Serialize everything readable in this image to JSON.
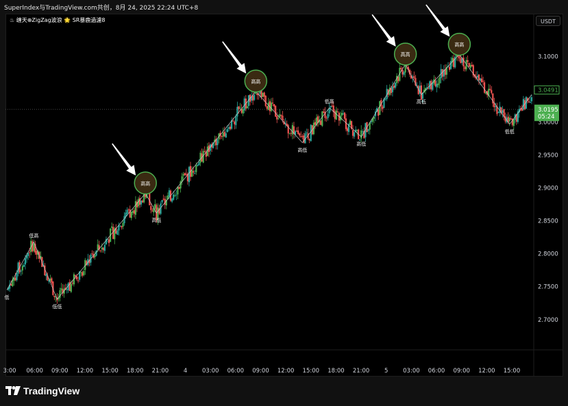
{
  "window": {
    "title": "SuperIndex与TradingView.com共创，8月 24, 2025 22:24 UTC+8"
  },
  "indicator": {
    "label": "♨ 缠天⊕ZigZag波浪 🌟 SR暴鹿過濾8"
  },
  "toolbar": {
    "currency": "USDT"
  },
  "branding": {
    "logo_text": "TradingView"
  },
  "chart_data": {
    "type": "line",
    "title": "",
    "xlabel": "",
    "ylabel": "",
    "ylim": [
      2.655,
      3.165
    ],
    "x_ticks": [
      "3:00",
      "06:00",
      "09:00",
      "12:00",
      "15:00",
      "18:00",
      "21:00",
      "4",
      "03:00",
      "06:00",
      "09:00",
      "12:00",
      "15:00",
      "18:00",
      "21:00",
      "5",
      "03:00",
      "06:00",
      "09:00",
      "12:00",
      "15:00"
    ],
    "y_ticks": [
      "3.1000",
      "3.0500",
      "3.0000",
      "2.9500",
      "2.9000",
      "2.8500",
      "2.8000",
      "2.7500",
      "2.7000"
    ],
    "y_tick_values": [
      3.1,
      3.05,
      3.0,
      2.95,
      2.9,
      2.85,
      2.8,
      2.75,
      2.7
    ],
    "current_price": "3.0195",
    "countdown": "05:24",
    "marked_price": "3.0491",
    "colors": {
      "up": "#26a69a",
      "up_bright": "#4caf50",
      "down": "#ef5350",
      "zigzag": "#c8c8c8",
      "circle_stroke": "#4caf50",
      "circle_fill": "#3a2a12",
      "price_label": "#4caf50"
    },
    "zigzag": [
      {
        "x": 0.0,
        "y": 2.745
      },
      {
        "x": 2.2,
        "y": 2.818
      },
      {
        "x": 4.1,
        "y": 2.731
      },
      {
        "x": 11.3,
        "y": 2.892
      },
      {
        "x": 12.2,
        "y": 2.862
      },
      {
        "x": 20.3,
        "y": 3.047
      },
      {
        "x": 24.1,
        "y": 2.969
      },
      {
        "x": 26.3,
        "y": 3.022
      },
      {
        "x": 28.9,
        "y": 2.978
      },
      {
        "x": 32.5,
        "y": 3.088
      },
      {
        "x": 33.8,
        "y": 3.042
      },
      {
        "x": 36.9,
        "y": 3.103
      },
      {
        "x": 41.0,
        "y": 2.997
      },
      {
        "x": 42.8,
        "y": 3.042
      }
    ],
    "zigzag_labels": [
      {
        "x": 0.0,
        "y": 2.745,
        "text": "低",
        "pos": "below"
      },
      {
        "x": 2.2,
        "y": 2.818,
        "text": "低高",
        "pos": "above"
      },
      {
        "x": 4.1,
        "y": 2.731,
        "text": "低低",
        "pos": "below"
      },
      {
        "x": 11.3,
        "y": 2.892,
        "text": "高高",
        "pos": "circle"
      },
      {
        "x": 12.2,
        "y": 2.862,
        "text": "高低",
        "pos": "below"
      },
      {
        "x": 20.3,
        "y": 3.047,
        "text": "高高",
        "pos": "circle"
      },
      {
        "x": 24.1,
        "y": 2.969,
        "text": "高低",
        "pos": "below"
      },
      {
        "x": 26.3,
        "y": 3.022,
        "text": "低高",
        "pos": "above"
      },
      {
        "x": 28.9,
        "y": 2.978,
        "text": "高低",
        "pos": "below"
      },
      {
        "x": 32.5,
        "y": 3.088,
        "text": "高高",
        "pos": "circle"
      },
      {
        "x": 33.8,
        "y": 3.042,
        "text": "高低",
        "pos": "below"
      },
      {
        "x": 36.9,
        "y": 3.103,
        "text": "高高",
        "pos": "circle"
      },
      {
        "x": 41.0,
        "y": 2.997,
        "text": "低低",
        "pos": "below"
      }
    ],
    "arrows": [
      {
        "target_x": 11.3,
        "target_y": 2.892
      },
      {
        "target_x": 20.3,
        "target_y": 3.047
      },
      {
        "target_x": 32.5,
        "target_y": 3.088
      },
      {
        "target_x": 36.9,
        "target_y": 3.103
      }
    ],
    "x_domain": [
      0,
      42.8
    ]
  }
}
